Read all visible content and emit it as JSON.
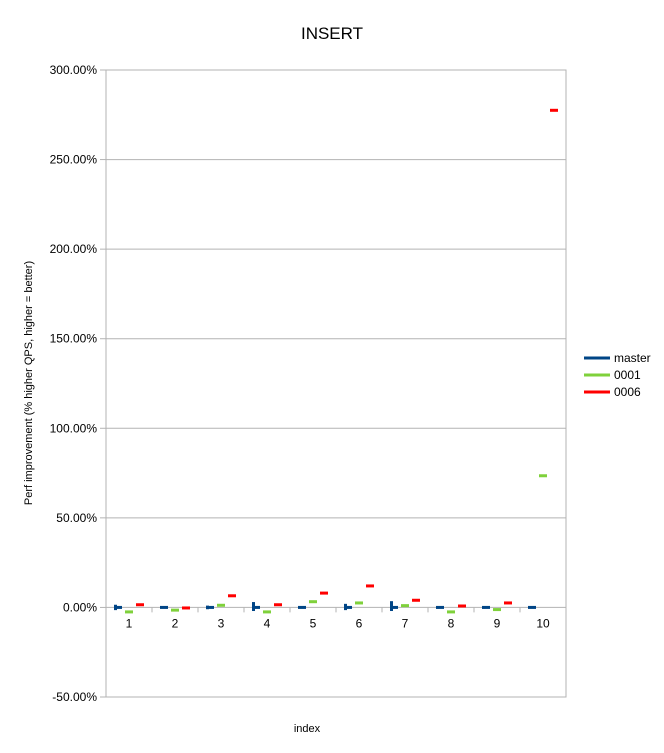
{
  "chart_data": {
    "type": "line",
    "title": "INSERT",
    "xlabel": "index",
    "ylabel": "Perf improvement (% higher QPS, higher = better)",
    "categories": [
      "1",
      "2",
      "3",
      "4",
      "5",
      "6",
      "7",
      "8",
      "9",
      "10"
    ],
    "y_ticks": [
      "300.00%",
      "250.00%",
      "200.00%",
      "150.00%",
      "100.00%",
      "50.00%",
      "0.00%",
      "-50.00%"
    ],
    "ylim": [
      -50,
      300
    ],
    "grid": true,
    "legend_position": "right",
    "series": [
      {
        "name": "master",
        "color": "#004586",
        "values": [
          0,
          0,
          0,
          0,
          0,
          0,
          0,
          0,
          0,
          0
        ],
        "low": [
          -1.5,
          -0.3,
          -1.0,
          -2.0,
          -0.3,
          -1.5,
          -2.0,
          -0.7,
          -0.7,
          -0.5
        ],
        "high": [
          1.5,
          0.3,
          1.0,
          3.0,
          0.3,
          2.0,
          3.5,
          0.7,
          0.7,
          0.5
        ]
      },
      {
        "name": "0001",
        "color": "#7fd13b",
        "values": [
          -2.5,
          -1.5,
          1.2,
          -2.5,
          3.2,
          2.5,
          1.0,
          -2.5,
          -1.2,
          73.5
        ]
      },
      {
        "name": "0006",
        "color": "#ff0000",
        "values": [
          1.5,
          -0.3,
          6.5,
          1.5,
          8.0,
          12.0,
          4.0,
          0.8,
          2.5,
          277.5
        ]
      }
    ]
  }
}
